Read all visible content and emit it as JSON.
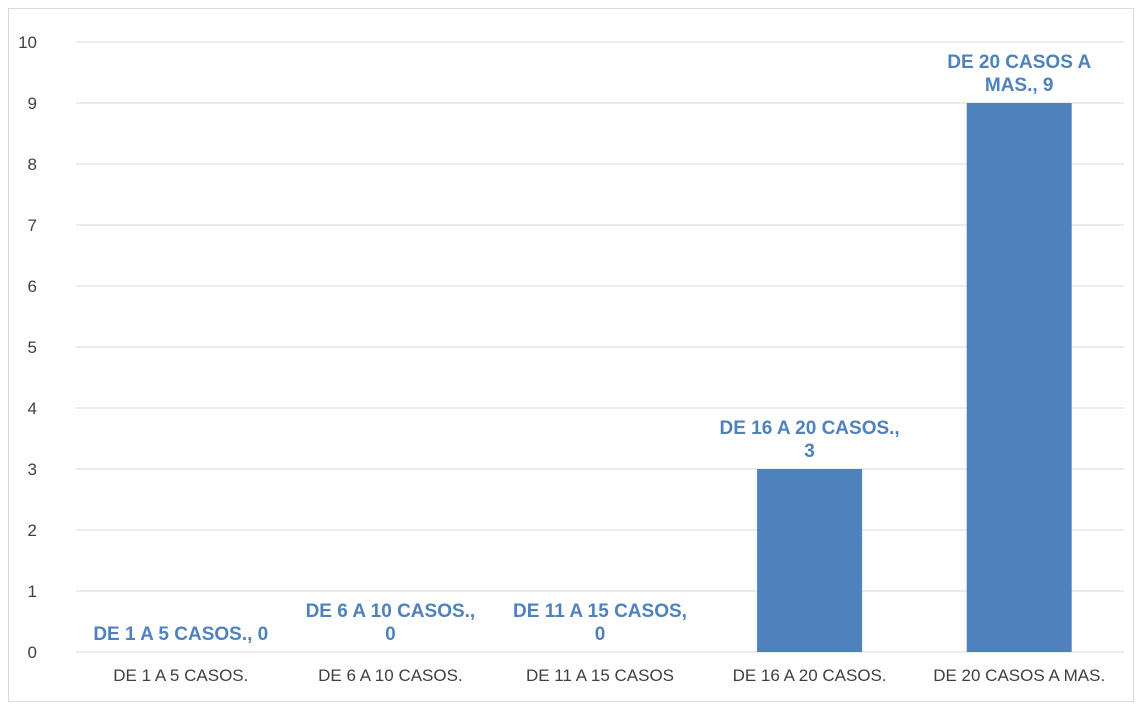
{
  "chart_data": {
    "type": "bar",
    "categories": [
      "DE 1 A 5 CASOS.",
      "DE 6 A 10 CASOS.",
      "DE 11 A 15 CASOS",
      "DE 16 A 20 CASOS.",
      "DE 20 CASOS A MAS."
    ],
    "values": [
      0,
      0,
      0,
      3,
      9
    ],
    "data_labels": [
      [
        "DE 1 A 5 CASOS., 0"
      ],
      [
        "DE 6 A 10 CASOS.,",
        "0"
      ],
      [
        "DE 11 A 15 CASOS,",
        "0"
      ],
      [
        "DE 16 A 20 CASOS.,",
        "3"
      ],
      [
        "DE 20 CASOS A",
        "MAS., 9"
      ]
    ],
    "title": "",
    "xlabel": "",
    "ylabel": "",
    "ylim": [
      0,
      10
    ],
    "yticks": [
      "0",
      "1",
      "2",
      "3",
      "4",
      "5",
      "6",
      "7",
      "8",
      "9",
      "10"
    ],
    "grid": true,
    "legend": "none",
    "colors": {
      "bar": "#4f81bd",
      "data_label": "#4f81bd",
      "grid": "#d9d9d9",
      "axis_text": "#404040"
    }
  }
}
